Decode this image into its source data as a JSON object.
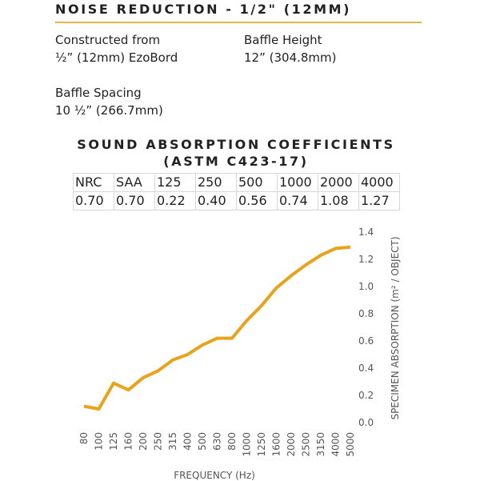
{
  "header": {
    "title": "NOISE  REDUCTION - 1/2\" (12MM)"
  },
  "specs": [
    {
      "label": "Constructed from",
      "value": "½” (12mm) EzoBord"
    },
    {
      "label": "Baffle Height",
      "value": "12” (304.8mm)"
    },
    {
      "label": "Baffle Spacing",
      "value": "10 ½” (266.7mm)"
    }
  ],
  "section": {
    "line1": "SOUND ABSORPTION COEFFICIENTS",
    "line2": "(ASTM C423-17)"
  },
  "table": {
    "rows": [
      [
        "NRC",
        "SAA",
        "125",
        "250",
        "500",
        "1000",
        "2000",
        "4000"
      ],
      [
        "0.70",
        "0.70",
        "0.22",
        "0.40",
        "0.56",
        "0.74",
        "1.08",
        "1.27"
      ]
    ]
  },
  "chart_data": {
    "type": "line",
    "x_label": "FREQUENCY (Hz)",
    "y_label": "SPECIMEN ABSORPTION (m² / OBJECT)",
    "categories": [
      "80",
      "100",
      "125",
      "160",
      "200",
      "250",
      "315",
      "400",
      "500",
      "630",
      "800",
      "1000",
      "1250",
      "1600",
      "2000",
      "2500",
      "3150",
      "4000",
      "5000"
    ],
    "values": [
      0.12,
      0.1,
      0.29,
      0.24,
      0.33,
      0.38,
      0.46,
      0.5,
      0.57,
      0.62,
      0.62,
      0.75,
      0.86,
      0.99,
      1.08,
      1.16,
      1.23,
      1.28,
      1.29
    ],
    "color": "#e9a21a",
    "ylim": [
      0,
      1.4
    ],
    "yticks": [
      {
        "value": 0,
        "label": "0.0"
      },
      0.2,
      0.4,
      0.6,
      0.8,
      {
        "value": 1,
        "label": "1.0"
      },
      1.2,
      1.4
    ],
    "y_axis_side": "right"
  }
}
